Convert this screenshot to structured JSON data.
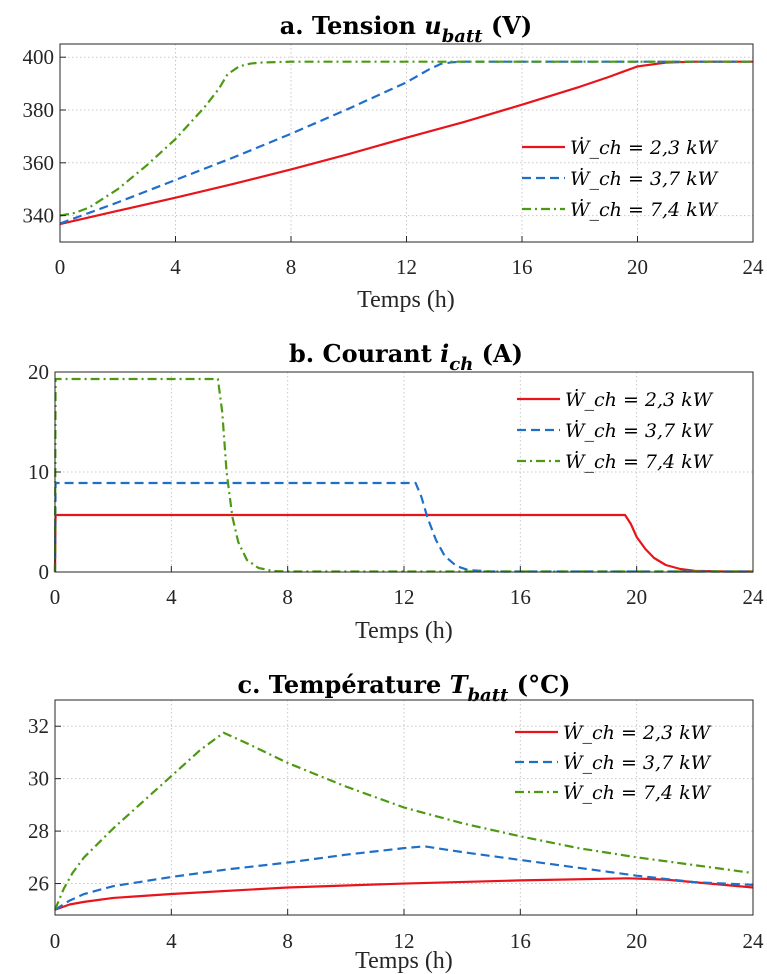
{
  "colors": {
    "series": [
      "#e8141c",
      "#1f6fc9",
      "#4d9a12"
    ],
    "axis": "#262626",
    "grid": "#c8c8c8",
    "background": "#ffffff"
  },
  "chart_data": [
    {
      "type": "line",
      "title_parts": [
        "a. Tension ",
        "u",
        "batt",
        " (V)"
      ],
      "title": "a. Tension u_batt (V)",
      "xlabel": "Temps (h)",
      "ylabel": "",
      "xlim": [
        0,
        24
      ],
      "ylim": [
        330,
        405
      ],
      "x_ticks": [
        0,
        4,
        8,
        12,
        16,
        20,
        24
      ],
      "y_ticks": [
        340,
        360,
        380,
        400
      ],
      "grid": true,
      "legend_position": "right",
      "series": [
        {
          "name": "Ẇ_ch = 2,3 kW",
          "style": "solid",
          "x": [
            0,
            2,
            4,
            6,
            8,
            10,
            12,
            14,
            16,
            18,
            19,
            19.5,
            20,
            21,
            22,
            24
          ],
          "y": [
            336.8,
            341.8,
            346.8,
            352,
            357.5,
            363.3,
            369.5,
            375.5,
            382,
            388.8,
            392.5,
            394.5,
            396.5,
            398,
            398.3,
            398.3
          ]
        },
        {
          "name": "Ẇ_ch = 3,7 kW",
          "style": "dashed",
          "x": [
            0,
            2,
            4,
            6,
            8,
            10,
            12,
            12.8,
            13.2,
            13.6,
            14,
            16,
            20,
            24
          ],
          "y": [
            337,
            345,
            353.5,
            362,
            371,
            380.5,
            390.5,
            395.5,
            397.5,
            398.1,
            398.3,
            398.3,
            398.3,
            398.3
          ]
        },
        {
          "name": "Ẇ_ch = 7,4 kW",
          "style": "dashdot",
          "x": [
            0,
            0.5,
            1,
            2,
            3,
            4,
            5,
            5.5,
            5.8,
            6.2,
            6.6,
            7,
            8,
            12,
            16,
            20,
            24
          ],
          "y": [
            340,
            341,
            343,
            350,
            359,
            369,
            381,
            388,
            393.5,
            396.5,
            397.6,
            398,
            398.3,
            398.3,
            398.3,
            398.3,
            398.3
          ]
        }
      ]
    },
    {
      "type": "line",
      "title_parts": [
        "b. Courant ",
        "i",
        "ch",
        " (A)"
      ],
      "title": "b. Courant i_ch (A)",
      "xlabel": "Temps (h)",
      "ylabel": "",
      "xlim": [
        0,
        24
      ],
      "ylim": [
        0,
        20
      ],
      "x_ticks": [
        0,
        4,
        8,
        12,
        16,
        20,
        24
      ],
      "y_ticks": [
        0,
        10,
        20
      ],
      "grid": true,
      "legend_position": "top-right",
      "series": [
        {
          "name": "Ẇ_ch = 2,3 kW",
          "style": "solid",
          "x": [
            0,
            0.02,
            0.05,
            19.6,
            19.8,
            20,
            20.3,
            20.6,
            21,
            21.5,
            22,
            23,
            24
          ],
          "y": [
            0,
            5.7,
            5.7,
            5.7,
            4.8,
            3.5,
            2.3,
            1.4,
            0.7,
            0.3,
            0.12,
            0.05,
            0.05
          ]
        },
        {
          "name": "Ẇ_ch = 3,7 kW",
          "style": "dashed",
          "x": [
            0,
            0.02,
            0.05,
            12.4,
            12.6,
            12.8,
            13.1,
            13.4,
            13.8,
            14.2,
            15,
            16,
            24
          ],
          "y": [
            0,
            8.9,
            8.9,
            8.9,
            7.5,
            5.5,
            3.2,
            1.6,
            0.6,
            0.2,
            0.05,
            0.05,
            0.05
          ]
        },
        {
          "name": "Ẇ_ch = 7,4 kW",
          "style": "dashdot",
          "x": [
            0,
            0.02,
            0.05,
            5.6,
            5.75,
            5.9,
            6.1,
            6.3,
            6.6,
            7,
            7.5,
            8,
            24
          ],
          "y": [
            0,
            19.3,
            19.3,
            19.3,
            16,
            10,
            5.5,
            3,
            1.2,
            0.4,
            0.1,
            0.05,
            0.05
          ]
        }
      ]
    },
    {
      "type": "line",
      "title_parts": [
        "c. Température ",
        "T",
        "batt",
        " (°C)"
      ],
      "title": "c. Température T_batt (°C)",
      "xlabel": "Temps (h)",
      "ylabel": "",
      "xlim": [
        0,
        24
      ],
      "ylim": [
        24.8,
        33
      ],
      "x_ticks": [
        0,
        4,
        8,
        12,
        16,
        20,
        24
      ],
      "y_ticks": [
        26,
        28,
        30,
        32
      ],
      "grid": true,
      "legend_position": "top-right",
      "series": [
        {
          "name": "Ẇ_ch = 2,3 kW",
          "style": "solid",
          "x": [
            0,
            0.5,
            1,
            2,
            4,
            8,
            12,
            16,
            19.7,
            21,
            22,
            24
          ],
          "y": [
            25,
            25.2,
            25.3,
            25.45,
            25.6,
            25.85,
            26,
            26.12,
            26.2,
            26.15,
            26.05,
            25.85
          ]
        },
        {
          "name": "Ẇ_ch = 3,7 kW",
          "style": "dashed",
          "x": [
            0,
            0.5,
            1,
            2,
            4,
            6,
            8,
            10,
            12,
            12.7,
            14,
            16,
            18,
            20,
            22,
            24
          ],
          "y": [
            25,
            25.35,
            25.6,
            25.9,
            26.25,
            26.55,
            26.8,
            27.1,
            27.35,
            27.42,
            27.2,
            26.9,
            26.6,
            26.3,
            26.05,
            25.95
          ]
        },
        {
          "name": "Ẇ_ch = 7,4 kW",
          "style": "dashdot",
          "x": [
            0,
            0.3,
            0.6,
            1,
            2,
            3,
            4,
            5,
            5.8,
            6.5,
            8,
            10,
            12,
            14,
            16,
            18,
            20,
            22,
            24
          ],
          "y": [
            25,
            25.8,
            26.4,
            27,
            28.1,
            29.1,
            30.1,
            31.1,
            31.75,
            31.4,
            30.6,
            29.7,
            28.9,
            28.3,
            27.8,
            27.35,
            27,
            26.7,
            26.4
          ]
        }
      ]
    }
  ]
}
